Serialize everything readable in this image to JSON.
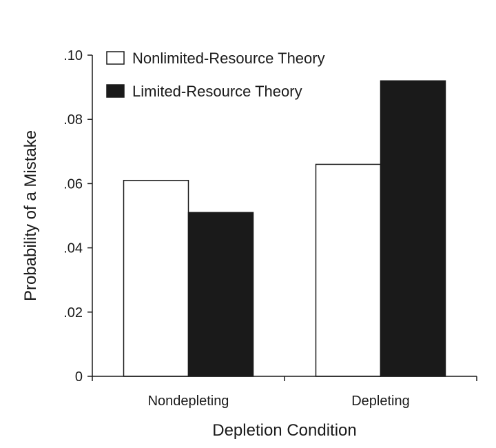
{
  "chart_data": {
    "type": "bar",
    "title": "",
    "xlabel": "Depletion Condition",
    "ylabel": "Probability of a Mistake",
    "categories": [
      "Nondepleting",
      "Depleting"
    ],
    "series": [
      {
        "name": "Nonlimited-Resource Theory",
        "values": [
          0.061,
          0.066
        ],
        "fill": "#ffffff"
      },
      {
        "name": "Limited-Resource Theory",
        "values": [
          0.051,
          0.092
        ],
        "fill": "#1a1a1a"
      }
    ],
    "ylim": [
      0,
      0.1
    ],
    "yticks": [
      0,
      0.02,
      0.04,
      0.06,
      0.08,
      0.1
    ],
    "ytick_labels": [
      "0",
      ".02",
      ".04",
      ".06",
      ".08",
      ".10"
    ],
    "legend_position": "top-left",
    "grid": false
  }
}
